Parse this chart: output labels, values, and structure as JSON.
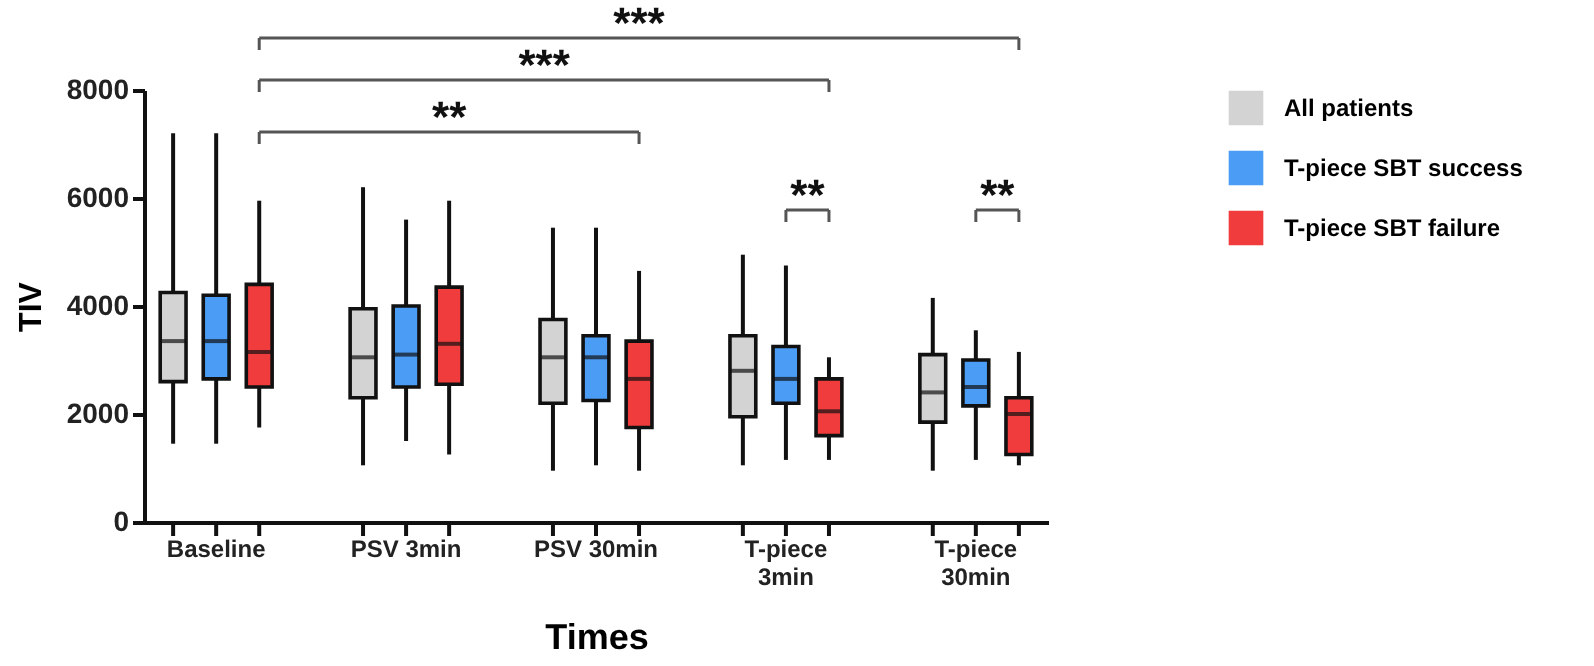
{
  "chart_data": {
    "type": "box",
    "xlabel": "Times",
    "ylabel": "TIV",
    "categories": [
      "Baseline",
      "PSV 3min",
      "PSV 30min",
      "T-piece 3min",
      "T-piece 30min"
    ],
    "ylim": [
      0,
      8000
    ],
    "yticks": [
      0,
      2000,
      4000,
      6000,
      8000
    ],
    "grid": false,
    "legend": "right",
    "annotations": [
      "***",
      "***",
      "**",
      "**",
      "**"
    ],
    "series": [
      {
        "name": "All patients",
        "color": "#d3d3d3",
        "boxes": [
          {
            "low": 1450,
            "q1": 2600,
            "median": 3350,
            "q3": 4250,
            "high": 7200
          },
          {
            "low": 1050,
            "q1": 2300,
            "median": 3050,
            "q3": 3950,
            "high": 6200
          },
          {
            "low": 950,
            "q1": 2200,
            "median": 3050,
            "q3": 3750,
            "high": 5450
          },
          {
            "low": 1050,
            "q1": 1950,
            "median": 2800,
            "q3": 3450,
            "high": 4950
          },
          {
            "low": 950,
            "q1": 1850,
            "median": 2400,
            "q3": 3100,
            "high": 4150
          }
        ]
      },
      {
        "name": "T-piece SBT success",
        "color": "#4a9cf5",
        "boxes": [
          {
            "low": 1450,
            "q1": 2650,
            "median": 3350,
            "q3": 4200,
            "high": 7200
          },
          {
            "low": 1500,
            "q1": 2500,
            "median": 3100,
            "q3": 4000,
            "high": 5600
          },
          {
            "low": 1050,
            "q1": 2250,
            "median": 3050,
            "q3": 3450,
            "high": 5450
          },
          {
            "low": 1150,
            "q1": 2200,
            "median": 2650,
            "q3": 3250,
            "high": 4750
          },
          {
            "low": 1150,
            "q1": 2150,
            "median": 2500,
            "q3": 3000,
            "high": 3550
          }
        ]
      },
      {
        "name": "T-piece SBT failure",
        "color": "#f03c3c",
        "boxes": [
          {
            "low": 1750,
            "q1": 2500,
            "median": 3150,
            "q3": 4400,
            "high": 5950
          },
          {
            "low": 1250,
            "q1": 2550,
            "median": 3300,
            "q3": 4350,
            "high": 5950
          },
          {
            "low": 950,
            "q1": 1750,
            "median": 2650,
            "q3": 3350,
            "high": 4650
          },
          {
            "low": 1150,
            "q1": 1600,
            "median": 2050,
            "q3": 2650,
            "high": 3050
          },
          {
            "low": 1050,
            "q1": 1250,
            "median": 2000,
            "q3": 2300,
            "high": 3150
          }
        ]
      }
    ]
  }
}
